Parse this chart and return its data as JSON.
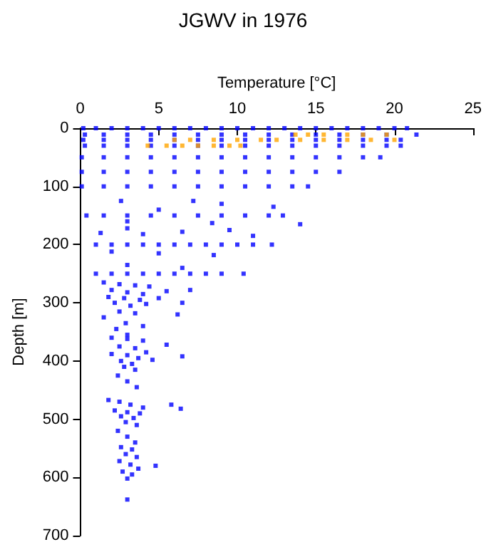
{
  "chart_data": {
    "type": "scatter",
    "title": "JGWV in 1976",
    "xlabel": "Temperature [°C]",
    "ylabel": "Depth [m]",
    "xlim": [
      0,
      25
    ],
    "xticks": [
      0,
      5,
      10,
      15,
      20,
      25
    ],
    "ylim": [
      700,
      0
    ],
    "yticks": [
      0,
      100,
      200,
      300,
      400,
      500,
      600,
      700
    ],
    "marker": "square",
    "series": [
      {
        "color": "#0000ff",
        "x": [
          0.2,
          1,
          2,
          3,
          4,
          5,
          6,
          7,
          8,
          9,
          10,
          11,
          12,
          13,
          14,
          15,
          16,
          17,
          18,
          19,
          20,
          20.8,
          0.3,
          1.5,
          3,
          4.5,
          6,
          7.5,
          9,
          10.5,
          12,
          13.5,
          15,
          16.5,
          18,
          19.5,
          21.4,
          0.2,
          1.5,
          3,
          4.5,
          6,
          7.5,
          9,
          10.5,
          12,
          13.5,
          15,
          16.5,
          18,
          19.5,
          20.4,
          0.3,
          1.5,
          3,
          4.5,
          6,
          7.5,
          9,
          10.5,
          12,
          13.5,
          15,
          16.5,
          18,
          19.5,
          20.4,
          0.1,
          1.5,
          3,
          4.5,
          6,
          7.5,
          9,
          10.5,
          12,
          13.5,
          15,
          16.5,
          18,
          19.1,
          0.1,
          1.5,
          3,
          4.5,
          6,
          7.5,
          9,
          10.5,
          12,
          13.5,
          15,
          16.5,
          0.1,
          1.5,
          3,
          4.5,
          6,
          7.5,
          9,
          10.5,
          12,
          13.5,
          14.5,
          0.4,
          1.5,
          3,
          4.5,
          6,
          7.5,
          9,
          10.5,
          12,
          12.9,
          1,
          2,
          3,
          4,
          5,
          6,
          7,
          8,
          9,
          10,
          11,
          12.2,
          1,
          2,
          3,
          4,
          5,
          6,
          7,
          8,
          9,
          10.4,
          2.6,
          7.2,
          9,
          12.3,
          5,
          14,
          3,
          8.4,
          1.3,
          4,
          6.5,
          9.5,
          11,
          3,
          2,
          5,
          8.5,
          3,
          6.5,
          1.5,
          2.5,
          3.5,
          4.4,
          2,
          3,
          4,
          5.5,
          7,
          1.8,
          2.8,
          3.8,
          5,
          6.5,
          2.2,
          3.2,
          4.2,
          2.5,
          3.5,
          6.2,
          1.5,
          2.9,
          2.3,
          4,
          3,
          2,
          3,
          4,
          5.5,
          2.5,
          3.5,
          4.2,
          2,
          3,
          3.7,
          2.6,
          3.3,
          4.6,
          6.5,
          2.8,
          3.5,
          2.4,
          3,
          3.6,
          1.8,
          2.5,
          3.2,
          4,
          2.2,
          3,
          3.8,
          6.4,
          5.8,
          2.6,
          3.4,
          2.9,
          3.6,
          2.4,
          3,
          3.5,
          2.6,
          3.3,
          2.9,
          3.6,
          2.5,
          3.2,
          3.7,
          2.7,
          3.3,
          3,
          4.8,
          3
        ],
        "values": [
          0,
          0,
          0,
          0,
          0,
          0,
          0,
          0,
          0,
          0,
          0,
          0,
          0,
          0,
          0,
          0,
          0,
          0,
          0,
          0,
          0,
          0,
          11,
          11,
          11,
          11,
          11,
          11,
          11,
          11,
          11,
          11,
          11,
          11,
          11,
          11,
          11,
          20,
          20,
          20,
          20,
          20,
          20,
          20,
          20,
          20,
          20,
          20,
          20,
          20,
          20,
          20,
          30,
          30,
          30,
          30,
          30,
          30,
          30,
          30,
          30,
          30,
          30,
          30,
          30,
          30,
          30,
          50,
          50,
          50,
          50,
          50,
          50,
          50,
          50,
          50,
          50,
          50,
          50,
          50,
          50,
          75,
          75,
          75,
          75,
          75,
          75,
          75,
          75,
          75,
          75,
          75,
          75,
          100,
          100,
          100,
          100,
          100,
          100,
          100,
          100,
          100,
          100,
          100,
          150,
          150,
          150,
          150,
          150,
          150,
          150,
          150,
          150,
          150,
          200,
          200,
          200,
          200,
          200,
          200,
          200,
          200,
          200,
          200,
          200,
          200,
          250,
          250,
          250,
          250,
          250,
          250,
          250,
          250,
          250,
          250,
          125,
          125,
          130,
          135,
          140,
          165,
          160,
          163,
          180,
          182,
          178,
          175,
          185,
          172,
          212,
          215,
          218,
          235,
          240,
          265,
          268,
          270,
          272,
          278,
          282,
          285,
          280,
          278,
          290,
          292,
          295,
          292,
          300,
          300,
          305,
          302,
          315,
          318,
          320,
          325,
          335,
          345,
          340,
          355,
          360,
          362,
          365,
          372,
          375,
          378,
          385,
          388,
          390,
          395,
          400,
          405,
          398,
          392,
          410,
          415,
          425,
          435,
          445,
          467,
          470,
          475,
          480,
          485,
          488,
          490,
          482,
          475,
          495,
          498,
          505,
          510,
          520,
          530,
          540,
          548,
          552,
          560,
          565,
          572,
          578,
          585,
          590,
          595,
          602,
          580,
          638
        ]
      },
      {
        "color": "#ffa500",
        "x": [
          13.7,
          14.5,
          15.5,
          17,
          18,
          19.5,
          6,
          7,
          8.5,
          10,
          11.5,
          12.5,
          14,
          15.5,
          17,
          18.5,
          20,
          4.3,
          5.5,
          6.5,
          7.5,
          8.5,
          9.5,
          10.2
        ],
        "values": [
          11,
          11,
          11,
          11,
          11,
          11,
          20,
          20,
          20,
          20,
          20,
          20,
          20,
          20,
          20,
          20,
          20,
          30,
          30,
          30,
          30,
          30,
          30,
          30
        ]
      }
    ]
  }
}
